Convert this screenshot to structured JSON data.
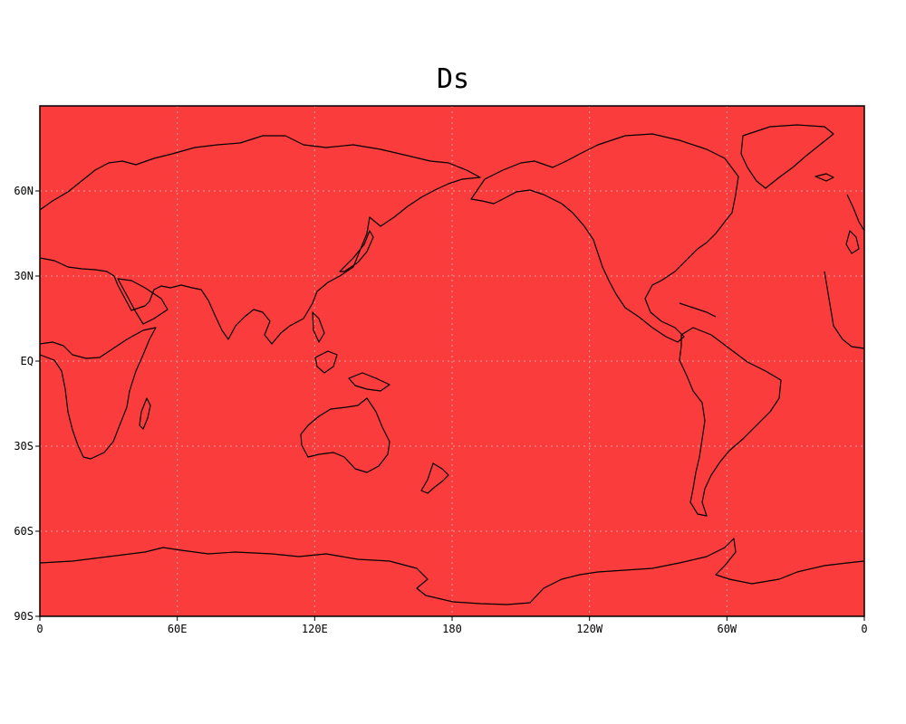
{
  "title": "Ds",
  "colors": {
    "field_fill": "#fb3c3c",
    "coastline": "#000000",
    "gridline": "#d9a0a0"
  },
  "map": {
    "projection": "cylindrical equidistant",
    "center_longitude": 180,
    "longitude_range": [
      0,
      360
    ],
    "latitude_range": [
      -90,
      90
    ],
    "x_ticks": [
      {
        "lon": 0,
        "label": "0"
      },
      {
        "lon": 60,
        "label": "60E"
      },
      {
        "lon": 120,
        "label": "120E"
      },
      {
        "lon": 180,
        "label": "180"
      },
      {
        "lon": 240,
        "label": "120W"
      },
      {
        "lon": 300,
        "label": "60W"
      },
      {
        "lon": 360,
        "label": "0"
      }
    ],
    "y_ticks": [
      {
        "lat": 60,
        "label": "60N"
      },
      {
        "lat": 30,
        "label": "30N"
      },
      {
        "lat": 0,
        "label": "EQ"
      },
      {
        "lat": -30,
        "label": "30S"
      },
      {
        "lat": -60,
        "label": "60S"
      },
      {
        "lat": -90,
        "label": "90S"
      }
    ],
    "grid": "dotted"
  }
}
